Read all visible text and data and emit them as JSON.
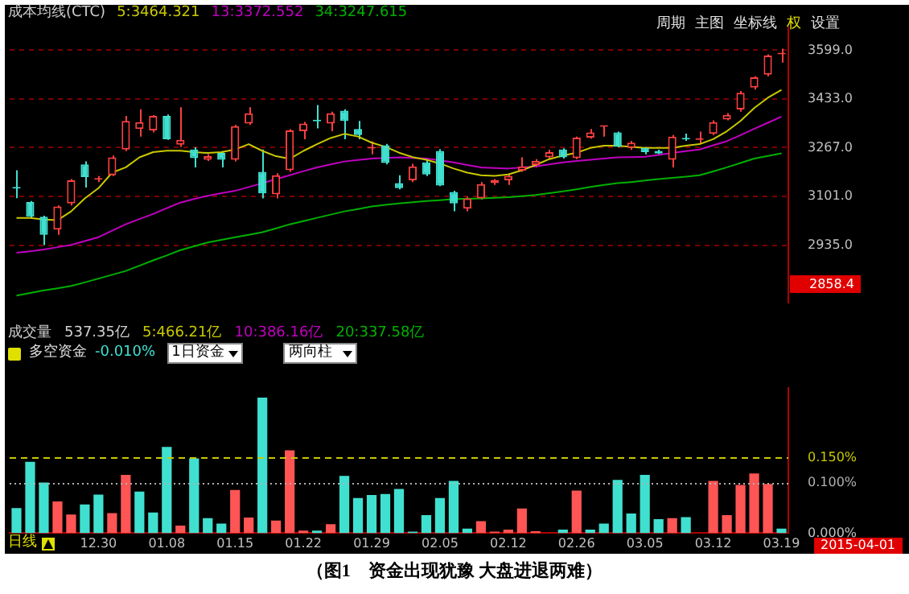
{
  "chart_data": [
    {
      "type": "candlestick",
      "title": "成本均线(CTC)",
      "categories": [
        null,
        null,
        null,
        null,
        null,
        null,
        "12.30",
        null,
        null,
        null,
        null,
        "01.08",
        null,
        null,
        null,
        null,
        "01.15",
        null,
        null,
        null,
        null,
        "01.22",
        null,
        null,
        null,
        null,
        "01.29",
        null,
        null,
        null,
        null,
        "02.05",
        null,
        null,
        null,
        null,
        "02.12",
        null,
        null,
        null,
        null,
        "02.26",
        null,
        null,
        null,
        null,
        "03.05",
        null,
        null,
        null,
        null,
        "03.12",
        null,
        null,
        null,
        null,
        "03.19"
      ],
      "ohlc": [
        [
          3130,
          3190,
          3095,
          3128
        ],
        [
          3082,
          3085,
          3030,
          3032
        ],
        [
          3032,
          3035,
          2935,
          2970
        ],
        [
          2988,
          3070,
          2970,
          3067
        ],
        [
          3077,
          3160,
          3070,
          3156
        ],
        [
          3210,
          3220,
          3131,
          3167
        ],
        [
          3158,
          3170,
          3150,
          3161
        ],
        [
          3173,
          3240,
          3170,
          3234
        ],
        [
          3261,
          3375,
          3255,
          3358
        ],
        [
          3331,
          3398,
          3305,
          3354
        ],
        [
          3326,
          3378,
          3319,
          3375
        ],
        [
          3375,
          3380,
          3294,
          3296
        ],
        [
          3277,
          3405,
          3270,
          3294
        ],
        [
          3261,
          3268,
          3200,
          3231
        ],
        [
          3226,
          3245,
          3222,
          3238
        ],
        [
          3249,
          3255,
          3200,
          3226
        ],
        [
          3226,
          3345,
          3220,
          3340
        ],
        [
          3349,
          3405,
          3345,
          3384
        ],
        [
          3185,
          3261,
          3094,
          3111
        ],
        [
          3108,
          3180,
          3094,
          3173
        ],
        [
          3190,
          3330,
          3185,
          3326
        ],
        [
          3323,
          3355,
          3296,
          3349
        ],
        [
          3360,
          3412,
          3333,
          3357
        ],
        [
          3349,
          3390,
          3323,
          3384
        ],
        [
          3393,
          3398,
          3296,
          3358
        ],
        [
          3331,
          3358,
          3296,
          3310
        ],
        [
          3264,
          3289,
          3244,
          3266
        ],
        [
          3275,
          3280,
          3210,
          3215
        ],
        [
          3146,
          3173,
          3125,
          3129
        ],
        [
          3156,
          3212,
          3150,
          3203
        ],
        [
          3217,
          3225,
          3170,
          3176
        ],
        [
          3256,
          3262,
          3136,
          3138
        ],
        [
          3116,
          3120,
          3050,
          3077
        ],
        [
          3059,
          3100,
          3050,
          3094
        ],
        [
          3094,
          3150,
          3090,
          3143
        ],
        [
          3146,
          3160,
          3140,
          3157
        ],
        [
          3156,
          3175,
          3140,
          3171
        ],
        [
          3189,
          3234,
          3185,
          3203
        ],
        [
          3208,
          3228,
          3200,
          3222
        ],
        [
          3234,
          3260,
          3228,
          3252
        ],
        [
          3261,
          3265,
          3230,
          3234
        ],
        [
          3231,
          3305,
          3228,
          3301
        ],
        [
          3301,
          3331,
          3298,
          3319
        ],
        [
          3338,
          3342,
          3305,
          3340
        ],
        [
          3319,
          3322,
          3268,
          3270
        ],
        [
          3266,
          3290,
          3260,
          3284
        ],
        [
          3266,
          3270,
          3244,
          3252
        ],
        [
          3256,
          3260,
          3245,
          3247
        ],
        [
          3226,
          3310,
          3200,
          3305
        ],
        [
          3297,
          3315,
          3290,
          3295
        ],
        [
          3294,
          3322,
          3282,
          3296
        ],
        [
          3314,
          3360,
          3310,
          3354
        ],
        [
          3363,
          3385,
          3360,
          3379
        ],
        [
          3397,
          3460,
          3390,
          3454
        ],
        [
          3472,
          3510,
          3465,
          3507
        ],
        [
          3516,
          3585,
          3510,
          3581
        ],
        [
          3585,
          3604,
          3557,
          3587
        ]
      ],
      "colors": [
        "#40e0d0",
        "#40e0d0",
        "#40e0d0",
        "#ff4040",
        "#ff4040",
        "#40e0d0",
        "#ff4040",
        "#ff4040",
        "#ff4040",
        "#ff4040",
        "#ff4040",
        "#40e0d0",
        "#ff4040",
        "#40e0d0",
        "#ff4040",
        "#40e0d0",
        "#ff4040",
        "#ff4040",
        "#40e0d0",
        "#ff4040",
        "#ff4040",
        "#ff4040",
        "#40e0d0",
        "#ff4040",
        "#40e0d0",
        "#40e0d0",
        "#ff4040",
        "#40e0d0",
        "#40e0d0",
        "#ff4040",
        "#40e0d0",
        "#40e0d0",
        "#40e0d0",
        "#ff4040",
        "#ff4040",
        "#ff4040",
        "#ff4040",
        "#ff4040",
        "#ff4040",
        "#ff4040",
        "#40e0d0",
        "#ff4040",
        "#ff4040",
        "#ff4040",
        "#40e0d0",
        "#ff4040",
        "#40e0d0",
        "#40e0d0",
        "#ff4040",
        "#40e0d0",
        "#ff4040",
        "#ff4040",
        "#ff4040",
        "#ff4040",
        "#ff4040",
        "#ff4040",
        "#ff4040"
      ],
      "series": [
        {
          "type": "line",
          "name": "5:3464.321",
          "color": "#c8c800",
          "values": [
            3028,
            3028,
            3022,
            3020,
            3050,
            3094,
            3129,
            3182,
            3200,
            3234,
            3252,
            3257,
            3257,
            3252,
            3249,
            3252,
            3261,
            3279,
            3256,
            3238,
            3229,
            3256,
            3279,
            3300,
            3314,
            3305,
            3284,
            3270,
            3250,
            3235,
            3226,
            3213,
            3196,
            3182,
            3173,
            3171,
            3176,
            3190,
            3208,
            3228,
            3240,
            3250,
            3266,
            3274,
            3274,
            3270,
            3266,
            3266,
            3266,
            3274,
            3279,
            3296,
            3323,
            3358,
            3402,
            3437,
            3464
          ]
        },
        {
          "type": "line",
          "name": "13:3372.552",
          "color": "#c000c0",
          "values": [
            2909,
            2914,
            2920,
            2928,
            2936,
            2949,
            2962,
            2984,
            3006,
            3024,
            3041,
            3061,
            3080,
            3092,
            3103,
            3112,
            3120,
            3133,
            3146,
            3160,
            3173,
            3187,
            3200,
            3210,
            3220,
            3225,
            3230,
            3232,
            3234,
            3232,
            3230,
            3224,
            3217,
            3208,
            3200,
            3198,
            3196,
            3200,
            3203,
            3210,
            3217,
            3222,
            3226,
            3230,
            3234,
            3235,
            3236,
            3242,
            3249,
            3255,
            3261,
            3275,
            3289,
            3310,
            3331,
            3352,
            3373
          ]
        },
        {
          "type": "line",
          "name": "34:3247.615",
          "color": "#00b000",
          "values": [
            2763,
            2772,
            2781,
            2788,
            2796,
            2808,
            2821,
            2834,
            2847,
            2865,
            2883,
            2900,
            2918,
            2931,
            2944,
            2953,
            2962,
            2970,
            2979,
            2992,
            3006,
            3017,
            3028,
            3039,
            3050,
            3058,
            3067,
            3072,
            3077,
            3081,
            3085,
            3088,
            3092,
            3093,
            3094,
            3096,
            3098,
            3102,
            3106,
            3112,
            3118,
            3125,
            3133,
            3140,
            3146,
            3150,
            3155,
            3160,
            3164,
            3168,
            3173,
            3186,
            3200,
            3215,
            3230,
            3239,
            3248
          ]
        }
      ],
      "ylim": [
        2738,
        3678
      ],
      "yticks": [
        {
          "value": 2935,
          "label": "2935.0"
        },
        {
          "value": 3101,
          "label": "3101.0"
        },
        {
          "value": 3267,
          "label": "3267.0"
        },
        {
          "value": 3433,
          "label": "3433.0"
        },
        {
          "value": 3599,
          "label": "3599.0"
        }
      ],
      "tick_labels": "y",
      "grid": "y",
      "annotations": [
        "周期",
        "主图",
        "坐标线",
        "权",
        "设置",
        "2858.4",
        "成交量",
        "537.35亿",
        "5:466.21亿",
        "10:386.16亿",
        "20:337.58亿"
      ]
    },
    {
      "type": "bar",
      "title": "多空资金",
      "categories": [
        null,
        null,
        null,
        null,
        null,
        null,
        "12.30",
        null,
        null,
        null,
        null,
        "01.08",
        null,
        null,
        null,
        null,
        "01.15",
        null,
        null,
        null,
        null,
        "01.22",
        null,
        null,
        null,
        null,
        "01.29",
        null,
        null,
        null,
        null,
        "02.05",
        null,
        null,
        null,
        null,
        "02.12",
        null,
        null,
        null,
        null,
        "02.26",
        null,
        null,
        null,
        null,
        "03.05",
        null,
        null,
        null,
        null,
        "03.12",
        null,
        null,
        null,
        null,
        "03.19"
      ],
      "values": [
        0.05,
        0.142,
        0.101,
        0.063,
        0.037,
        0.057,
        0.077,
        0.04,
        0.116,
        0.083,
        0.041,
        0.172,
        0.015,
        0.149,
        0.03,
        0.019,
        0.086,
        0.031,
        0.27,
        0.025,
        0.165,
        0.005,
        0.005,
        0.018,
        0.114,
        0.07,
        0.076,
        0.078,
        0.088,
        0.003,
        0.036,
        0.07,
        0.104,
        0.009,
        0.024,
        0.003,
        0.007,
        0.049,
        0.004,
        null,
        0.007,
        0.085,
        0.007,
        0.019,
        0.106,
        0.039,
        0.116,
        0.028,
        0.03,
        0.032,
        null,
        0.104,
        0.036,
        0.096,
        0.119,
        0.098,
        0.009
      ],
      "colors": [
        "#40e0d0",
        "#40e0d0",
        "#40e0d0",
        "#ff5555",
        "#ff5555",
        "#40e0d0",
        "#40e0d0",
        "#ff5555",
        "#ff5555",
        "#40e0d0",
        "#40e0d0",
        "#40e0d0",
        "#ff5555",
        "#40e0d0",
        "#40e0d0",
        "#40e0d0",
        "#ff5555",
        "#ff5555",
        "#40e0d0",
        "#ff5555",
        "#ff5555",
        "#ff5555",
        "#40e0d0",
        "#ff5555",
        "#40e0d0",
        "#40e0d0",
        "#40e0d0",
        "#40e0d0",
        "#40e0d0",
        "#40e0d0",
        "#40e0d0",
        "#40e0d0",
        "#40e0d0",
        "#40e0d0",
        "#ff5555",
        "#ff5555",
        "#ff5555",
        "#ff5555",
        "#ff5555",
        "#ff5555",
        "#40e0d0",
        "#ff5555",
        "#40e0d0",
        "#40e0d0",
        "#40e0d0",
        "#40e0d0",
        "#40e0d0",
        "#40e0d0",
        "#ff5555",
        "#40e0d0",
        "#ff5555",
        "#ff5555",
        "#ff5555",
        "#ff5555",
        "#ff5555",
        "#ff5555",
        "#40e0d0"
      ],
      "ylim": [
        0,
        0.29
      ],
      "yticks": [
        {
          "value": 0,
          "label": "0.000%"
        },
        {
          "value": 0.1,
          "label": "0.100%"
        },
        {
          "value": 0.15,
          "label": "0.150%"
        }
      ],
      "ref_lines": [
        {
          "axis": "y",
          "value": 0.15,
          "color": "#c8c800",
          "line_style": "dashed"
        },
        {
          "axis": "y",
          "value": 0.1,
          "color": "#b0b0b0",
          "line_style": "dotted"
        }
      ],
      "annotations": [
        "-0.010%",
        "1日资金",
        "两向柱",
        "日线",
        "2015-04-01",
        "（图1　资金出现犹豫 大盘进退两难）"
      ]
    }
  ]
}
